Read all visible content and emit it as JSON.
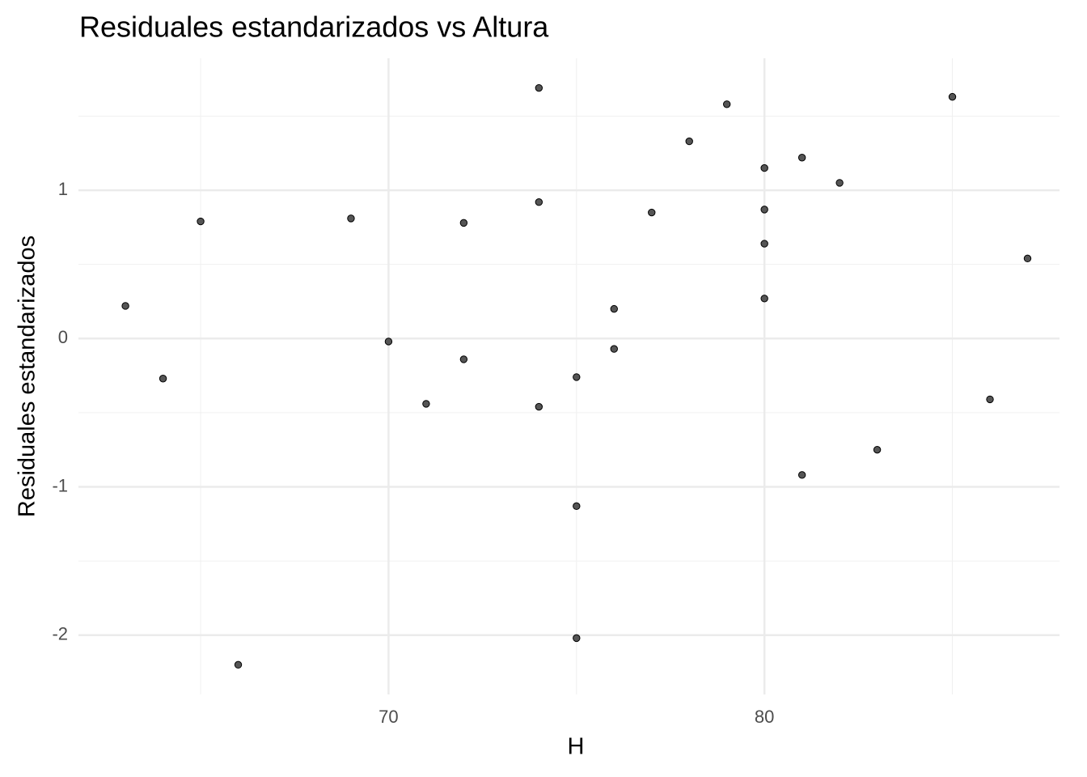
{
  "chart_data": {
    "type": "scatter",
    "title": "Residuales estandarizados vs Altura",
    "x_label": "H",
    "y_label": "Residuales estandarizados",
    "x": [
      63,
      64,
      65,
      66,
      69,
      70,
      71,
      72,
      72,
      74,
      74,
      74,
      75,
      75,
      75,
      76,
      76,
      77,
      78,
      79,
      80,
      80,
      80,
      80,
      81,
      81,
      82,
      83,
      85,
      86,
      87
    ],
    "values": [
      0.22,
      -0.27,
      0.79,
      -2.2,
      0.81,
      -0.02,
      -0.44,
      0.78,
      -0.14,
      1.69,
      0.92,
      -0.46,
      -0.26,
      -1.13,
      -2.02,
      0.2,
      -0.07,
      0.85,
      1.33,
      1.58,
      1.15,
      0.87,
      0.64,
      0.27,
      1.22,
      -0.92,
      1.05,
      -0.75,
      1.63,
      -0.41,
      0.54
    ],
    "color": "#555555",
    "xlim": [
      61.75,
      87.85
    ],
    "ylim": [
      -2.4,
      1.89
    ],
    "xticks": [
      70,
      80
    ],
    "yticks": [
      -2,
      -1,
      0,
      1
    ],
    "minor_xticks": [
      65,
      75,
      85
    ],
    "minor_yticks": [
      -1.5,
      -0.5,
      0.5,
      1.5
    ],
    "grid": true
  }
}
